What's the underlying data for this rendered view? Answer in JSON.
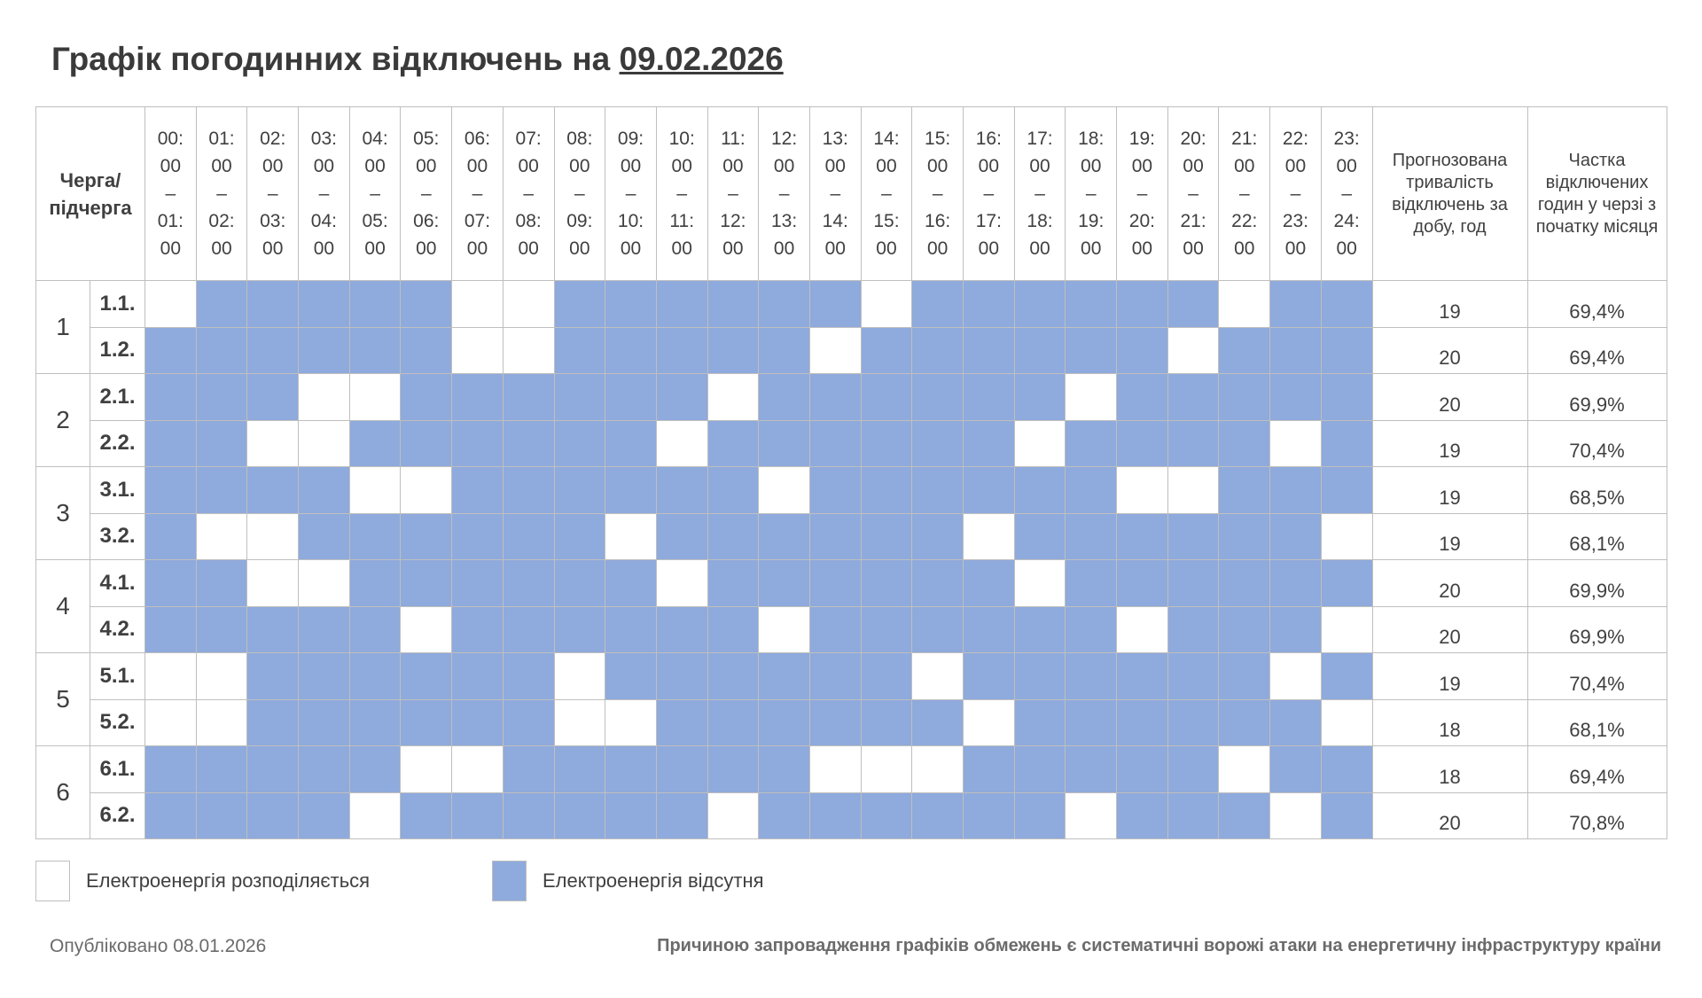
{
  "title": {
    "prefix": "Графік погодинних відключень на",
    "date": "09.02.2026"
  },
  "header": {
    "queue_label": "Черга/ підчерга",
    "hours": [
      [
        "00:",
        "00",
        "–",
        "01:",
        "00"
      ],
      [
        "01:",
        "00",
        "–",
        "02:",
        "00"
      ],
      [
        "02:",
        "00",
        "–",
        "03:",
        "00"
      ],
      [
        "03:",
        "00",
        "–",
        "04:",
        "00"
      ],
      [
        "04:",
        "00",
        "–",
        "05:",
        "00"
      ],
      [
        "05:",
        "00",
        "–",
        "06:",
        "00"
      ],
      [
        "06:",
        "00",
        "–",
        "07:",
        "00"
      ],
      [
        "07:",
        "00",
        "–",
        "08:",
        "00"
      ],
      [
        "08:",
        "00",
        "–",
        "09:",
        "00"
      ],
      [
        "09:",
        "00",
        "–",
        "10:",
        "00"
      ],
      [
        "10:",
        "00",
        "–",
        "11:",
        "00"
      ],
      [
        "11:",
        "00",
        "–",
        "12:",
        "00"
      ],
      [
        "12:",
        "00",
        "–",
        "13:",
        "00"
      ],
      [
        "13:",
        "00",
        "–",
        "14:",
        "00"
      ],
      [
        "14:",
        "00",
        "–",
        "15:",
        "00"
      ],
      [
        "15:",
        "00",
        "–",
        "16:",
        "00"
      ],
      [
        "16:",
        "00",
        "–",
        "17:",
        "00"
      ],
      [
        "17:",
        "00",
        "–",
        "18:",
        "00"
      ],
      [
        "18:",
        "00",
        "–",
        "19:",
        "00"
      ],
      [
        "19:",
        "00",
        "–",
        "20:",
        "00"
      ],
      [
        "20:",
        "00",
        "–",
        "21:",
        "00"
      ],
      [
        "21:",
        "00",
        "–",
        "22:",
        "00"
      ],
      [
        "22:",
        "00",
        "–",
        "23:",
        "00"
      ],
      [
        "23:",
        "00",
        "–",
        "24:",
        "00"
      ]
    ],
    "duration_label": "Прогнозована тривалість відключень за добу, год",
    "share_label": "Частка відключених годин у черзі з початку місяця"
  },
  "colors": {
    "off": "#8faadc",
    "on": "#ffffff"
  },
  "groups": [
    {
      "group": "1",
      "rows": [
        {
          "sub": "1.1.",
          "hours": "011111001111110111111011",
          "duration": "19",
          "share": "69,4%"
        },
        {
          "sub": "1.2.",
          "hours": "111111001111101111110111",
          "duration": "20",
          "share": "69,4%"
        }
      ]
    },
    {
      "group": "2",
      "rows": [
        {
          "sub": "2.1.",
          "hours": "111001111110111111011111",
          "duration": "20",
          "share": "69,9%"
        },
        {
          "sub": "2.2.",
          "hours": "110011111101111110111101",
          "duration": "19",
          "share": "70,4%"
        }
      ]
    },
    {
      "group": "3",
      "rows": [
        {
          "sub": "3.1.",
          "hours": "111100111111011111100111",
          "duration": "19",
          "share": "68,5%"
        },
        {
          "sub": "3.2.",
          "hours": "100111111011111101111110",
          "duration": "19",
          "share": "68,1%"
        }
      ]
    },
    {
      "group": "4",
      "rows": [
        {
          "sub": "4.1.",
          "hours": "110011111101111110111111",
          "duration": "20",
          "share": "69,9%"
        },
        {
          "sub": "4.2.",
          "hours": "111110111111011111101110",
          "duration": "20",
          "share": "69,9%"
        }
      ]
    },
    {
      "group": "5",
      "rows": [
        {
          "sub": "5.1.",
          "hours": "001111110111111011111101",
          "duration": "19",
          "share": "70,4%"
        },
        {
          "sub": "5.2.",
          "hours": "001111110011111101111110",
          "duration": "18",
          "share": "68,1%"
        }
      ]
    },
    {
      "group": "6",
      "rows": [
        {
          "sub": "6.1.",
          "hours": "111110011111100011111011",
          "duration": "18",
          "share": "69,4%"
        },
        {
          "sub": "6.2.",
          "hours": "111101111110111111011101",
          "duration": "20",
          "share": "70,8%"
        }
      ]
    }
  ],
  "legend": {
    "on": "Електроенергія розподіляється",
    "off": "Електроенергія відсутня"
  },
  "footer": {
    "published": "Опубліковано 08.01.2026",
    "reason": "Причиною запровадження графіків обмежень є систематичні ворожі атаки на енергетичну інфраструктуру країни"
  }
}
